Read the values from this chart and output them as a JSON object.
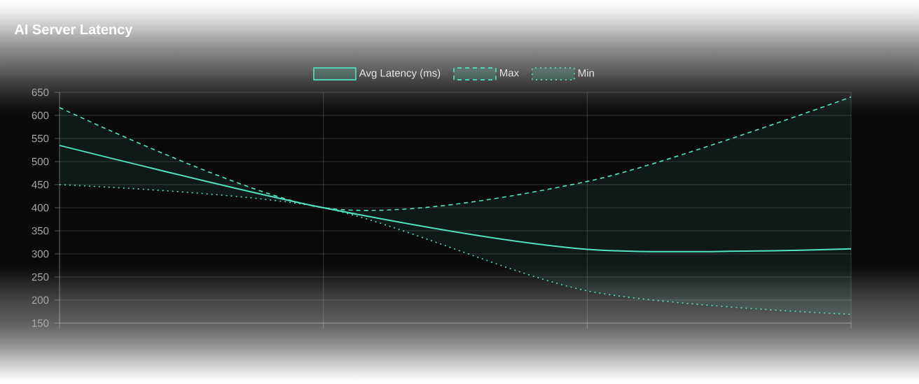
{
  "chart_data": {
    "type": "line",
    "title": "AI Server Latency",
    "categories": [
      null,
      null,
      null,
      null
    ],
    "series": [
      {
        "name": "Avg Latency (ms)",
        "color": "#50e3c2",
        "line_style": "solid",
        "values": [
          535,
          400,
          310,
          311
        ],
        "lower": [
          450,
          400,
          220,
          169
        ],
        "upper": [
          617,
          400,
          457,
          640
        ]
      },
      {
        "name": "Max",
        "color": "#50e3c2",
        "line_style": "dashed",
        "values": [
          617,
          400,
          457,
          640
        ]
      },
      {
        "name": "Min",
        "color": "#50e3c2",
        "line_style": "dotted",
        "values": [
          450,
          400,
          220,
          169
        ]
      }
    ],
    "ylim": [
      150,
      650
    ],
    "yticks": [
      150,
      200,
      250,
      300,
      350,
      400,
      450,
      500,
      550,
      600,
      650
    ],
    "grid": true,
    "legend": "top"
  }
}
